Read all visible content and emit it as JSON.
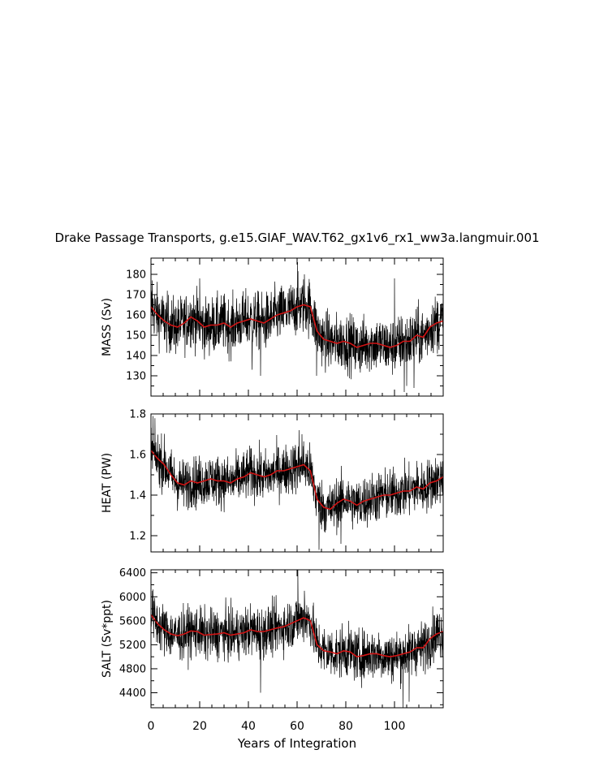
{
  "chart_data": {
    "type": "line",
    "title": "Drake Passage Transports, g.e15.GIAF_WAV.T62_gx1v6_rx1_ww3a.langmuir.001",
    "xlabel": "Years of Integration",
    "xlim": [
      0,
      120
    ],
    "x_ticks": [
      0,
      20,
      40,
      60,
      80,
      100
    ],
    "panels": [
      {
        "ylabel": "MASS (Sv)",
        "ylim": [
          120,
          188
        ],
        "y_ticks": [
          130,
          140,
          150,
          160,
          170,
          180
        ],
        "smoothed_values": [
          164,
          160,
          157,
          155,
          154,
          156,
          159,
          157,
          154,
          155,
          155,
          156,
          154,
          156,
          157,
          158,
          157,
          156,
          158,
          160,
          161,
          162,
          164,
          165,
          164,
          152,
          148,
          147,
          146,
          147,
          146,
          144,
          145,
          146,
          146,
          145,
          144,
          145,
          147,
          147,
          150,
          149,
          154,
          156,
          157
        ],
        "raw_spread": 10,
        "spikes": [
          [
            0.5,
            177
          ],
          [
            20,
            178
          ],
          [
            41.5,
            133
          ],
          [
            45,
            130
          ],
          [
            60.2,
            186
          ],
          [
            63,
            180
          ],
          [
            68,
            130
          ],
          [
            100,
            178
          ],
          [
            104,
            122
          ],
          [
            105,
            125
          ],
          [
            108,
            124
          ]
        ]
      },
      {
        "ylabel": "HEAT (PW)",
        "ylim": [
          1.12,
          1.8
        ],
        "y_ticks": [
          1.2,
          1.4,
          1.6,
          1.8
        ],
        "smoothed_values": [
          1.62,
          1.58,
          1.55,
          1.5,
          1.46,
          1.45,
          1.47,
          1.46,
          1.47,
          1.48,
          1.47,
          1.47,
          1.46,
          1.48,
          1.49,
          1.51,
          1.5,
          1.49,
          1.5,
          1.52,
          1.52,
          1.53,
          1.54,
          1.55,
          1.52,
          1.38,
          1.34,
          1.33,
          1.36,
          1.38,
          1.37,
          1.35,
          1.37,
          1.38,
          1.39,
          1.4,
          1.4,
          1.41,
          1.42,
          1.42,
          1.44,
          1.43,
          1.46,
          1.47,
          1.49
        ],
        "raw_spread": 0.09,
        "spikes": [
          [
            0.8,
            1.79
          ],
          [
            60.8,
            1.72
          ],
          [
            69,
            1.13
          ],
          [
            62,
            1.7
          ],
          [
            78,
            1.16
          ]
        ]
      },
      {
        "ylabel": "SALT (Sv*ppt)",
        "ylim": [
          4150,
          6450
        ],
        "y_ticks": [
          4400,
          4800,
          5200,
          5600,
          6000,
          6400
        ],
        "smoothed_values": [
          5700,
          5550,
          5450,
          5380,
          5350,
          5380,
          5430,
          5420,
          5360,
          5370,
          5380,
          5400,
          5360,
          5380,
          5400,
          5450,
          5420,
          5420,
          5450,
          5480,
          5500,
          5550,
          5600,
          5650,
          5600,
          5200,
          5100,
          5080,
          5050,
          5100,
          5080,
          5000,
          5020,
          5050,
          5050,
          5020,
          5000,
          5020,
          5050,
          5080,
          5150,
          5150,
          5300,
          5380,
          5420
        ],
        "raw_spread": 300,
        "spikes": [
          [
            0.6,
            6100
          ],
          [
            60.3,
            6450
          ],
          [
            45,
            4400
          ],
          [
            63,
            6100
          ],
          [
            100,
            4900
          ],
          [
            103.5,
            4150
          ],
          [
            106,
            4250
          ]
        ]
      }
    ]
  }
}
